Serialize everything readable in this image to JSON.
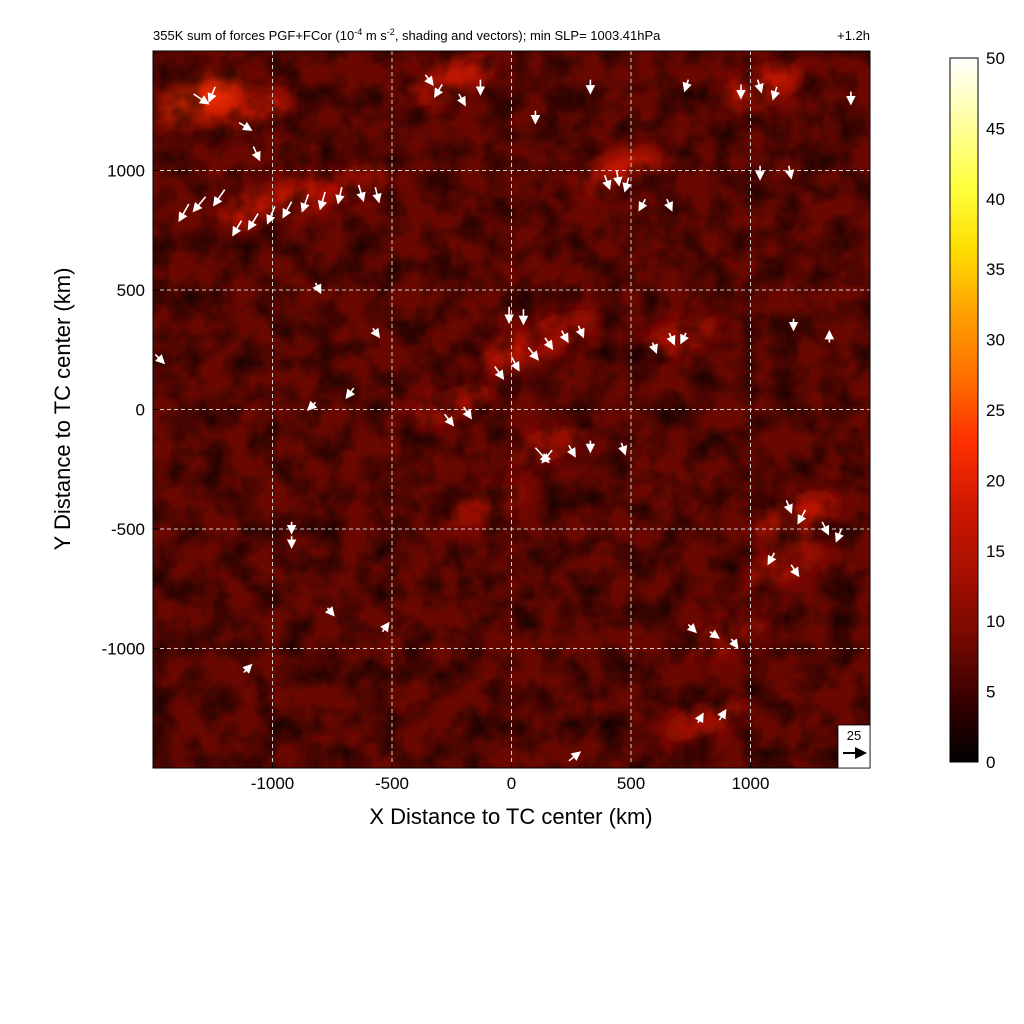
{
  "chart_data": {
    "type": "heatmap",
    "title": "355K sum of forces PGF+FCor (10",
    "title_exponent": "-4",
    "title_units_mid": " m s",
    "title_units_exponent": "-2",
    "title_rest": ", shading and vectors); min SLP= 1003.41hPa",
    "time_label": "+1.2h",
    "xlabel": "X Distance to TC center (km)",
    "ylabel": "Y Distance to TC center (km)",
    "xlim": [
      -1500,
      1500
    ],
    "ylim": [
      -1500,
      1500
    ],
    "xticks": [
      -1000,
      -500,
      0,
      500,
      1000
    ],
    "yticks": [
      -1000,
      -500,
      0,
      500,
      1000
    ],
    "xtick_labels": [
      "-1000",
      "-500",
      "0",
      "500",
      "1000"
    ],
    "ytick_labels": [
      "-1000",
      "-500",
      "0",
      "500",
      "1000"
    ],
    "grid": true,
    "colorbar": {
      "min": 0,
      "max": 50,
      "ticks": [
        "0",
        "5",
        "10",
        "15",
        "20",
        "25",
        "30",
        "35",
        "40",
        "45",
        "50"
      ],
      "colors": [
        "#000000",
        "#3a0000",
        "#7a0a00",
        "#a81000",
        "#d01800",
        "#ff3000",
        "#ff7000",
        "#ffa000",
        "#ffdd00",
        "#ffff40",
        "#ffffa0",
        "#ffffff"
      ]
    },
    "reference_vector": {
      "label": "25",
      "magnitude": 25
    },
    "high_force_bands": [
      {
        "x": -1050,
        "y": 850,
        "value": 18
      },
      {
        "x": -850,
        "y": 900,
        "value": 16
      },
      {
        "x": -650,
        "y": 950,
        "value": 15
      },
      {
        "x": -1300,
        "y": 1300,
        "value": 22
      },
      {
        "x": -1100,
        "y": 1250,
        "value": 20
      },
      {
        "x": -250,
        "y": 1380,
        "value": 18
      },
      {
        "x": 450,
        "y": 1000,
        "value": 17
      },
      {
        "x": 1050,
        "y": 1350,
        "value": 16
      },
      {
        "x": 50,
        "y": 250,
        "value": 16
      },
      {
        "x": 200,
        "y": 330,
        "value": 15
      },
      {
        "x": -250,
        "y": 20,
        "value": 14
      },
      {
        "x": 150,
        "y": -150,
        "value": 15
      },
      {
        "x": 1200,
        "y": -450,
        "value": 16
      },
      {
        "x": 1150,
        "y": -650,
        "value": 13
      },
      {
        "x": 900,
        "y": -950,
        "value": 12
      },
      {
        "x": 800,
        "y": -1300,
        "value": 13
      },
      {
        "x": 700,
        "y": 300,
        "value": 13
      },
      {
        "x": -100,
        "y": -400,
        "value": 12
      }
    ],
    "vectors": [
      {
        "x": -1350,
        "y": 860,
        "u": -8,
        "v": -14
      },
      {
        "x": -1280,
        "y": 890,
        "u": -10,
        "v": -12
      },
      {
        "x": -1200,
        "y": 920,
        "u": -9,
        "v": -13
      },
      {
        "x": -1130,
        "y": 790,
        "u": -7,
        "v": -12
      },
      {
        "x": -1060,
        "y": 820,
        "u": -8,
        "v": -13
      },
      {
        "x": -990,
        "y": 850,
        "u": -6,
        "v": -14
      },
      {
        "x": -920,
        "y": 870,
        "u": -7,
        "v": -13
      },
      {
        "x": -850,
        "y": 900,
        "u": -5,
        "v": -14
      },
      {
        "x": -780,
        "y": 910,
        "u": -4,
        "v": -14
      },
      {
        "x": -710,
        "y": 930,
        "u": -3,
        "v": -13
      },
      {
        "x": -640,
        "y": 940,
        "u": 4,
        "v": -13
      },
      {
        "x": -570,
        "y": 930,
        "u": 3,
        "v": -12
      },
      {
        "x": -1330,
        "y": 1320,
        "u": 12,
        "v": -8
      },
      {
        "x": -1240,
        "y": 1350,
        "u": -5,
        "v": -12
      },
      {
        "x": -1140,
        "y": 1200,
        "u": 10,
        "v": -6
      },
      {
        "x": -1080,
        "y": 1100,
        "u": 5,
        "v": -11
      },
      {
        "x": -360,
        "y": 1400,
        "u": 6,
        "v": -8
      },
      {
        "x": -290,
        "y": 1360,
        "u": -6,
        "v": -10
      },
      {
        "x": -220,
        "y": 1320,
        "u": 5,
        "v": -9
      },
      {
        "x": -130,
        "y": 1380,
        "u": 0,
        "v": -12
      },
      {
        "x": 100,
        "y": 1250,
        "u": 0,
        "v": -10
      },
      {
        "x": 330,
        "y": 1380,
        "u": 0,
        "v": -11
      },
      {
        "x": 390,
        "y": 980,
        "u": 4,
        "v": -11
      },
      {
        "x": 440,
        "y": 1000,
        "u": 2,
        "v": -12
      },
      {
        "x": 490,
        "y": 970,
        "u": -3,
        "v": -11
      },
      {
        "x": 560,
        "y": 880,
        "u": -5,
        "v": -9
      },
      {
        "x": 650,
        "y": 880,
        "u": 4,
        "v": -9
      },
      {
        "x": 740,
        "y": 1380,
        "u": -3,
        "v": -9
      },
      {
        "x": 960,
        "y": 1360,
        "u": 0,
        "v": -11
      },
      {
        "x": 1030,
        "y": 1380,
        "u": 3,
        "v": -10
      },
      {
        "x": 1110,
        "y": 1350,
        "u": -3,
        "v": -10
      },
      {
        "x": 1420,
        "y": 1330,
        "u": 0,
        "v": -10
      },
      {
        "x": 1040,
        "y": 1020,
        "u": 0,
        "v": -11
      },
      {
        "x": 1160,
        "y": 1020,
        "u": 2,
        "v": -10
      },
      {
        "x": -10,
        "y": 430,
        "u": 0,
        "v": -13
      },
      {
        "x": 50,
        "y": 420,
        "u": 0,
        "v": -12
      },
      {
        "x": -70,
        "y": 180,
        "u": 7,
        "v": -10
      },
      {
        "x": 0,
        "y": 220,
        "u": 6,
        "v": -11
      },
      {
        "x": 70,
        "y": 260,
        "u": 8,
        "v": -10
      },
      {
        "x": 140,
        "y": 300,
        "u": 6,
        "v": -9
      },
      {
        "x": 210,
        "y": 330,
        "u": 5,
        "v": -9
      },
      {
        "x": 280,
        "y": 350,
        "u": 4,
        "v": -9
      },
      {
        "x": 590,
        "y": 280,
        "u": 3,
        "v": -8
      },
      {
        "x": 660,
        "y": 320,
        "u": 4,
        "v": -9
      },
      {
        "x": 730,
        "y": 320,
        "u": -4,
        "v": -8
      },
      {
        "x": -280,
        "y": -20,
        "u": 7,
        "v": -9
      },
      {
        "x": -200,
        "y": 10,
        "u": 6,
        "v": -9
      },
      {
        "x": 100,
        "y": -160,
        "u": 11,
        "v": -12
      },
      {
        "x": 170,
        "y": -170,
        "u": -8,
        "v": -10
      },
      {
        "x": 240,
        "y": -150,
        "u": 5,
        "v": -9
      },
      {
        "x": 330,
        "y": -130,
        "u": 0,
        "v": -9
      },
      {
        "x": 460,
        "y": -140,
        "u": 3,
        "v": -9
      },
      {
        "x": 1150,
        "y": -380,
        "u": 4,
        "v": -10
      },
      {
        "x": 1230,
        "y": -420,
        "u": -6,
        "v": -11
      },
      {
        "x": 1300,
        "y": -470,
        "u": 5,
        "v": -10
      },
      {
        "x": 1380,
        "y": -500,
        "u": -4,
        "v": -10
      },
      {
        "x": 1100,
        "y": -600,
        "u": -5,
        "v": -9
      },
      {
        "x": 1170,
        "y": -650,
        "u": 6,
        "v": -9
      },
      {
        "x": 740,
        "y": -900,
        "u": 6,
        "v": -6
      },
      {
        "x": 830,
        "y": -930,
        "u": 7,
        "v": -5
      },
      {
        "x": 920,
        "y": -960,
        "u": 5,
        "v": -7
      },
      {
        "x": 780,
        "y": -1310,
        "u": 4,
        "v": 7
      },
      {
        "x": 870,
        "y": -1300,
        "u": 5,
        "v": 8
      },
      {
        "x": 240,
        "y": -1470,
        "u": 9,
        "v": 7
      },
      {
        "x": -920,
        "y": -470,
        "u": 0,
        "v": -9
      },
      {
        "x": -920,
        "y": -530,
        "u": 0,
        "v": -9
      },
      {
        "x": -770,
        "y": -830,
        "u": 5,
        "v": -6
      },
      {
        "x": -540,
        "y": -930,
        "u": 5,
        "v": 7
      },
      {
        "x": -1120,
        "y": -1100,
        "u": 6,
        "v": 6
      },
      {
        "x": -660,
        "y": 90,
        "u": -6,
        "v": -8
      },
      {
        "x": -820,
        "y": 30,
        "u": -6,
        "v": -6
      },
      {
        "x": -1490,
        "y": 230,
        "u": 7,
        "v": -7
      },
      {
        "x": -580,
        "y": 340,
        "u": 5,
        "v": -7
      },
      {
        "x": -820,
        "y": 530,
        "u": 4,
        "v": -8
      },
      {
        "x": 1180,
        "y": 380,
        "u": 0,
        "v": -9
      },
      {
        "x": 1330,
        "y": 280,
        "u": 0,
        "v": 9
      }
    ]
  }
}
